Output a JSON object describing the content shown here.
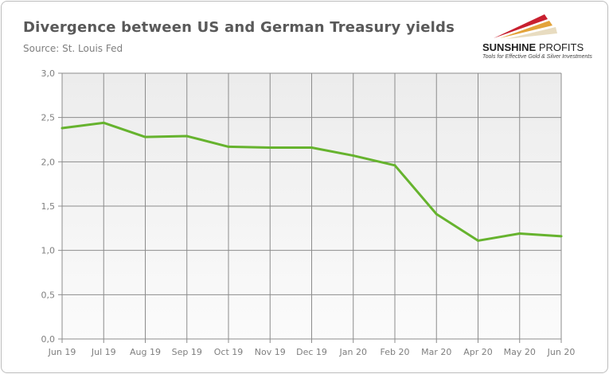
{
  "title": "Divergence between US and German Treasury yields",
  "subtitle": "Source: St. Louis Fed",
  "logo": {
    "name_bold": "SUNSHINE",
    "name_light": "PROFITS",
    "tagline": "Tools for Effective Gold & Silver Investments"
  },
  "chart_data": {
    "type": "line",
    "title": "Divergence between US and German Treasury yields",
    "categories": [
      "Jun 19",
      "Jul 19",
      "Aug 19",
      "Sep 19",
      "Oct 19",
      "Nov 19",
      "Dec 19",
      "Jan 20",
      "Feb 20",
      "Mar 20",
      "Apr 20",
      "May 20",
      "Jun 20"
    ],
    "series": [
      {
        "values": [
          2.38,
          2.44,
          2.28,
          2.29,
          2.17,
          2.16,
          2.16,
          2.07,
          1.96,
          1.41,
          1.11,
          1.19,
          1.16
        ],
        "color": "#66b32e"
      }
    ],
    "ylim": [
      0,
      3
    ],
    "yticks": [
      "0,0",
      "0,5",
      "1,0",
      "1,5",
      "2,0",
      "2,5",
      "3,0"
    ],
    "grid": true,
    "xlabel": "",
    "ylabel": ""
  }
}
